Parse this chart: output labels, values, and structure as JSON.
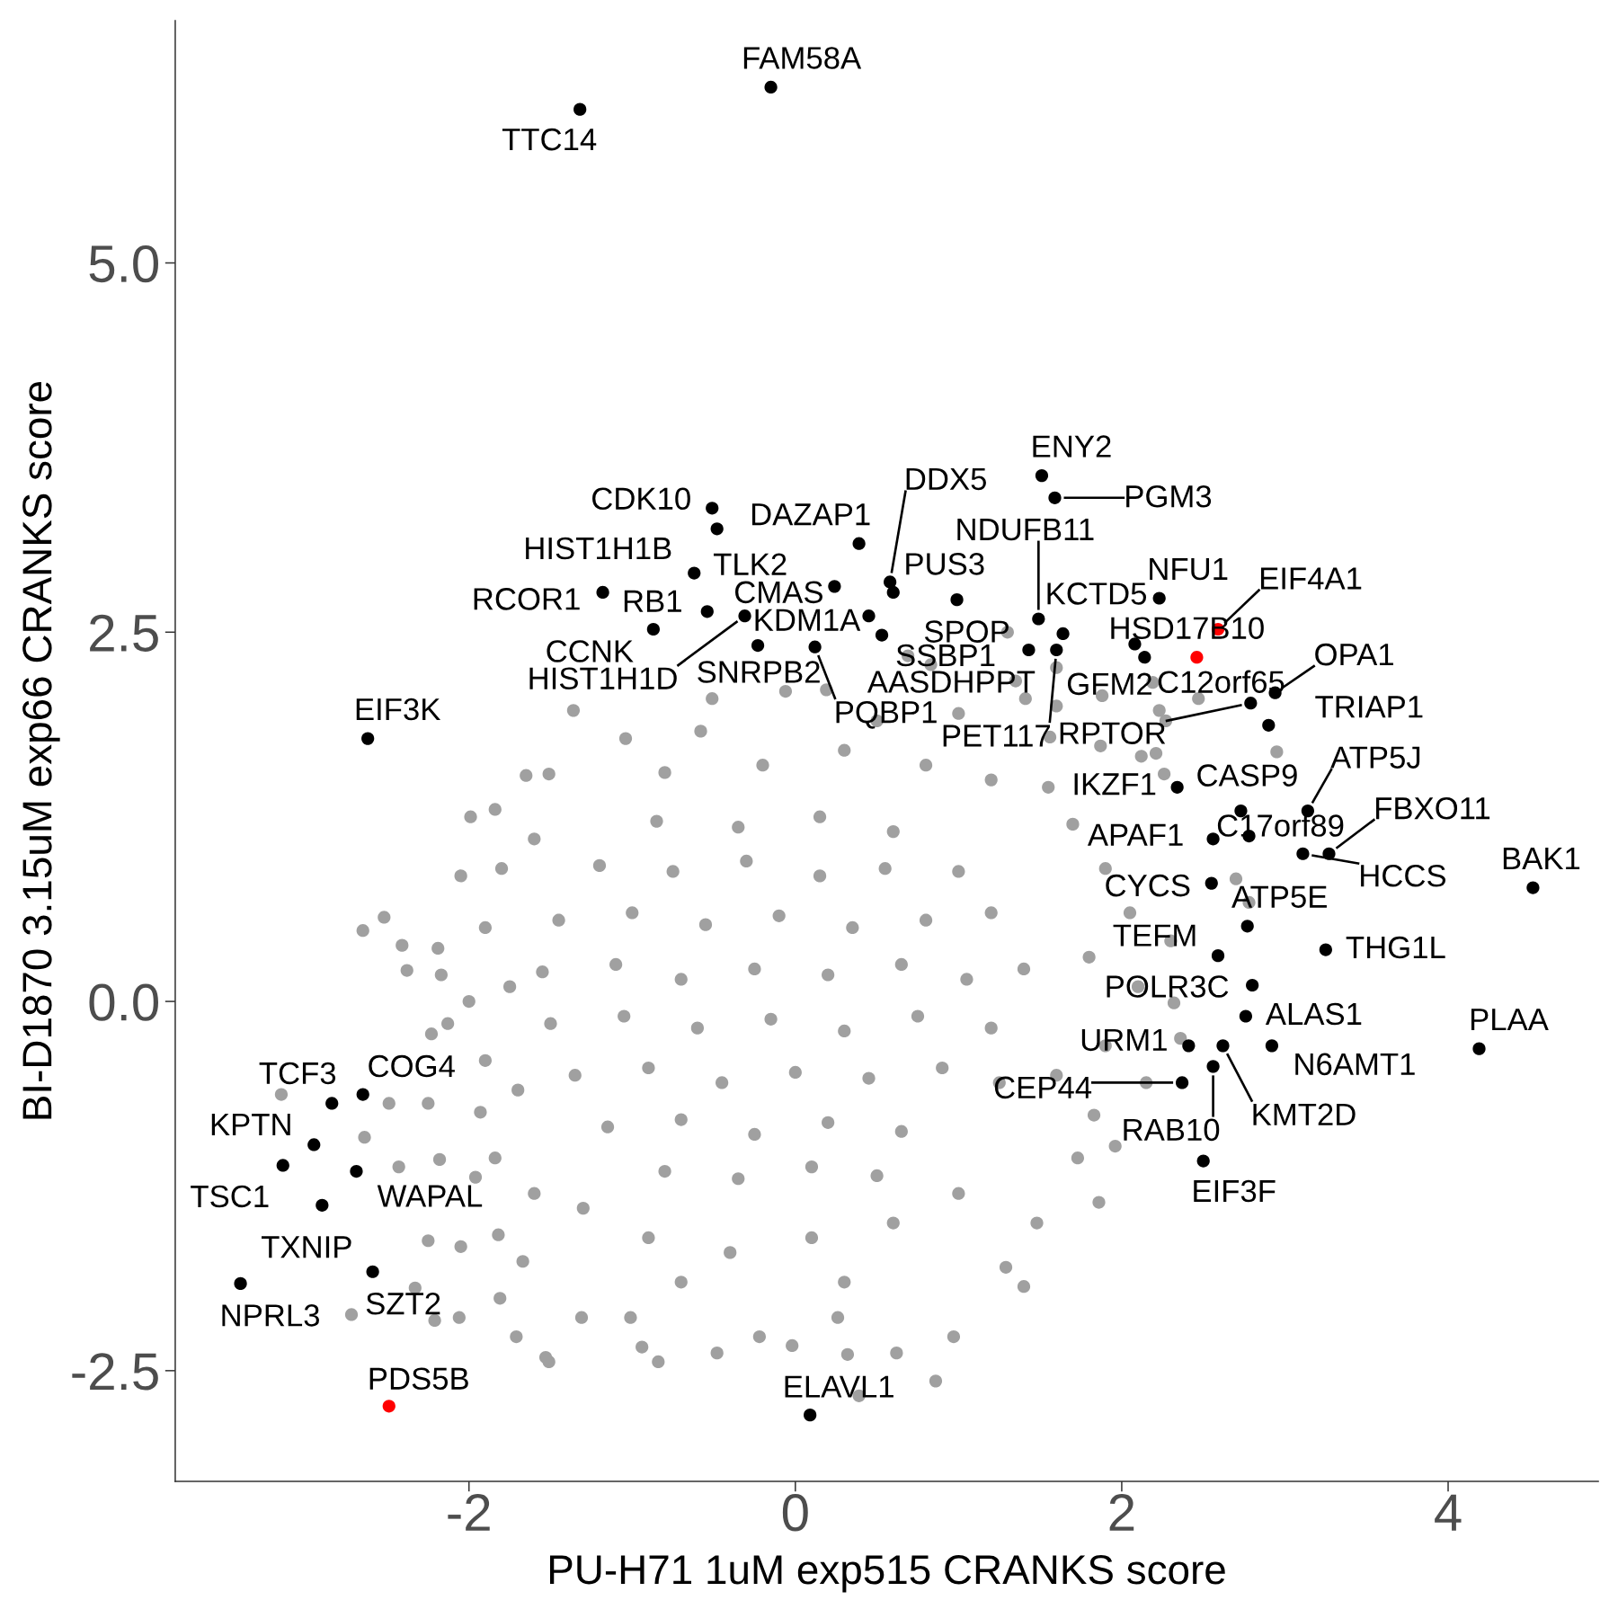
{
  "chart_data": {
    "type": "scatter",
    "xlabel": "PU-H71 1uM exp515 CRANKS score",
    "ylabel": "BI-D1870 3.15uM exp66 CRANKS score",
    "xlim": [
      -3.8,
      4.92
    ],
    "ylim": [
      -3.25,
      6.64
    ],
    "xticks": [
      -2,
      0,
      2,
      4
    ],
    "yticks": [
      -2.5,
      {
        "value": 0,
        "label": "0.0"
      },
      2.5,
      {
        "value": 5,
        "label": "5.0"
      }
    ],
    "grid": false,
    "marker": "circle",
    "series": [
      {
        "color": "#a0a0a0",
        "x": [
          -1.65,
          -1.51,
          -1.99,
          -1.84,
          -2.05,
          -2.52,
          -2.65,
          -2.41,
          -2.38,
          -2.19,
          -2.17,
          -2.23,
          -2.13,
          -3.15,
          -2.49,
          -2.64,
          -2.43,
          -2.18,
          -2.25,
          -2.25,
          -2.05,
          -2.72,
          -2.33,
          -2.21,
          -2.06,
          -1.71,
          -1.81,
          -1.51,
          -1.31,
          -1.01,
          -0.94,
          -1.84,
          -1.82,
          -1.67,
          -1.96,
          -1.93,
          -1.36,
          -1.04,
          -0.58,
          -0.51,
          -0.06,
          0.19,
          -1.53,
          -0.84,
          -0.48,
          -0.22,
          -0.02,
          0.26,
          0.32,
          0.39,
          0.62,
          0.86,
          0.97,
          1.29,
          1.4,
          1.48,
          1.86,
          1.73,
          1.96,
          1.83,
          2.32,
          2.36,
          2.7,
          2.78,
          2.3,
          1.6,
          2.19,
          2.47,
          1.88,
          1.6,
          2.23,
          2.27,
          2.95,
          1.87,
          2.12,
          2.21,
          2.26,
          0.69,
          1.3,
          0.83,
          1.35,
          1.56,
          1.41,
          -0.8,
          -0.2,
          0.3,
          0.8,
          1.2,
          0.5,
          1.0,
          1.7,
          1.9,
          2.05,
          1.8,
          2.1,
          1.9,
          1.6,
          2.15,
          1.55,
          -1.8,
          -1.9,
          -1.75,
          -1.9,
          -1.7,
          -1.6,
          -2.0,
          -1.3,
          -0.9,
          -0.4,
          0.1,
          0.6,
          1.0,
          -1.6,
          0.3,
          -0.7,
          -0.85,
          -0.35,
          0.15,
          0.6,
          -1.2,
          -0.75,
          -0.3,
          0.15,
          0.55,
          1.0,
          -1.45,
          -1.0,
          -0.55,
          -0.1,
          0.35,
          0.8,
          1.2,
          -1.55,
          -1.1,
          -0.7,
          -0.25,
          0.2,
          0.65,
          1.05,
          1.4,
          -1.5,
          -1.05,
          -0.6,
          -0.15,
          0.3,
          0.75,
          1.2,
          -1.35,
          -0.9,
          -0.45,
          0.0,
          0.45,
          0.9,
          1.25,
          -1.15,
          -0.7,
          -0.25,
          0.2,
          0.65,
          -0.8,
          -0.35,
          0.1,
          0.5
        ],
        "values": [
          1.53,
          1.54,
          1.25,
          1.3,
          0.85,
          0.57,
          0.48,
          0.38,
          0.21,
          0.36,
          0.18,
          -0.22,
          -0.15,
          -0.63,
          -0.69,
          -0.92,
          -1.12,
          -1.07,
          -0.69,
          -1.62,
          -1.66,
          -2.12,
          -1.94,
          -2.16,
          -2.14,
          -2.27,
          -2.01,
          -2.44,
          -2.14,
          -2.14,
          -2.34,
          -1.06,
          -1.58,
          -1.76,
          -1.19,
          -0.75,
          1.97,
          1.78,
          1.83,
          2.05,
          2.1,
          2.11,
          -2.41,
          -2.44,
          -2.38,
          -2.27,
          -2.33,
          -2.14,
          -2.39,
          -2.67,
          -2.38,
          -2.57,
          -2.27,
          -1.8,
          -1.93,
          -1.5,
          -1.36,
          -1.06,
          -0.98,
          -0.77,
          -0.01,
          -0.25,
          0.83,
          0.67,
          0.41,
          2.26,
          2.16,
          2.05,
          2.07,
          2.0,
          1.97,
          1.9,
          1.69,
          1.73,
          1.66,
          1.68,
          1.54,
          2.34,
          2.5,
          2.28,
          2.17,
          1.79,
          2.05,
          1.55,
          1.6,
          1.7,
          1.6,
          1.5,
          1.9,
          1.95,
          1.2,
          0.9,
          0.6,
          0.3,
          0.1,
          -0.3,
          -0.5,
          -0.55,
          1.45,
          0.9,
          0.5,
          0.1,
          -0.4,
          -0.6,
          1.1,
          0.0,
          -1.4,
          -1.6,
          -1.7,
          -1.6,
          -1.5,
          -1.3,
          -1.3,
          -1.9,
          -1.9,
          1.22,
          1.18,
          1.25,
          1.15,
          0.92,
          0.88,
          0.95,
          0.85,
          0.9,
          0.88,
          0.55,
          0.6,
          0.52,
          0.58,
          0.5,
          0.55,
          0.6,
          0.2,
          0.25,
          0.15,
          0.22,
          0.18,
          0.25,
          0.15,
          0.22,
          -0.15,
          -0.1,
          -0.18,
          -0.12,
          -0.2,
          -0.1,
          -0.18,
          -0.5,
          -0.45,
          -0.55,
          -0.48,
          -0.52,
          -0.45,
          -0.55,
          -0.85,
          -0.8,
          -0.9,
          -0.82,
          -0.88,
          -1.15,
          -1.2,
          -1.12,
          -1.18
        ]
      },
      {
        "color": "#000000",
        "x": [
          -0.15,
          -1.32,
          -2.62,
          0.24,
          -0.51,
          0.39,
          -0.62,
          -0.48,
          -1.18,
          -0.54,
          -0.31,
          -0.87,
          0.12,
          -0.23,
          0.45,
          1.43,
          0.53,
          0.58,
          0.6,
          0.99,
          1.6,
          1.49,
          1.64,
          2.08,
          1.51,
          1.59,
          2.23,
          2.14,
          2.94,
          2.9,
          2.79,
          2.34,
          3.14,
          2.73,
          2.78,
          2.56,
          3.27,
          3.11,
          4.52,
          2.55,
          2.77,
          3.25,
          2.59,
          2.8,
          2.76,
          4.19,
          2.41,
          2.92,
          2.62,
          2.37,
          2.56,
          2.5,
          -2.65,
          -2.84,
          -2.95,
          -3.14,
          -2.69,
          -2.9,
          -2.59,
          -3.4,
          0.09
        ],
        "values": [
          6.19,
          6.04,
          1.78,
          2.81,
          3.34,
          3.1,
          2.9,
          3.2,
          2.77,
          2.64,
          2.61,
          2.52,
          2.4,
          2.41,
          2.61,
          2.38,
          2.48,
          2.84,
          2.77,
          2.72,
          2.38,
          2.59,
          2.49,
          2.42,
          3.56,
          3.41,
          2.73,
          2.33,
          2.09,
          1.87,
          2.02,
          1.45,
          1.29,
          1.29,
          1.12,
          1.1,
          1.0,
          1.0,
          0.77,
          0.8,
          0.51,
          0.35,
          0.31,
          0.11,
          -0.1,
          -0.32,
          -0.3,
          -0.3,
          -0.3,
          -0.55,
          -0.44,
          -1.08,
          -0.63,
          -0.69,
          -0.97,
          -1.11,
          -1.15,
          -1.38,
          -1.83,
          -1.91,
          -2.8
        ]
      },
      {
        "color": "#ff0000",
        "x": [
          2.59,
          2.46,
          -2.49
        ],
        "values": [
          2.52,
          2.33,
          -2.74
        ]
      }
    ],
    "annotations": [
      {
        "text": "FAM58A",
        "x": -0.15,
        "y": 6.19
      },
      {
        "text": "TTC14",
        "x": -1.32,
        "y": 6.04
      },
      {
        "text": "EIF3K",
        "x": -2.62,
        "y": 1.78
      },
      {
        "text": "CMAS",
        "x": 0.24,
        "y": 2.81
      },
      {
        "text": "CDK10",
        "x": -0.51,
        "y": 3.34
      },
      {
        "text": "DAZAP1",
        "x": 0.39,
        "y": 3.1
      },
      {
        "text": "HIST1H1B",
        "x": -0.62,
        "y": 2.9
      },
      {
        "text": "TLK2",
        "x": -0.48,
        "y": 3.2
      },
      {
        "text": "RCOR1",
        "x": -1.18,
        "y": 2.77
      },
      {
        "text": "RB1",
        "x": -0.54,
        "y": 2.64
      },
      {
        "text": "HIST1H1D",
        "x": -0.31,
        "y": 2.61
      },
      {
        "text": "CCNK",
        "x": -0.87,
        "y": 2.52
      },
      {
        "text": "PQBP1",
        "x": 0.12,
        "y": 2.4
      },
      {
        "text": "SNRPB2",
        "x": -0.23,
        "y": 2.41
      },
      {
        "text": "KDM1A",
        "x": 0.45,
        "y": 2.61
      },
      {
        "text": "AASDHPPT",
        "x": 1.43,
        "y": 2.38
      },
      {
        "text": "SSBP1",
        "x": 0.53,
        "y": 2.48
      },
      {
        "text": "DDX5",
        "x": 0.58,
        "y": 2.84
      },
      {
        "text": "PUS3",
        "x": 0.6,
        "y": 2.77
      },
      {
        "text": "SPOP",
        "x": 0.99,
        "y": 2.72
      },
      {
        "text": "PET117",
        "x": 1.6,
        "y": 2.38
      },
      {
        "text": "NDUFB11",
        "x": 1.49,
        "y": 2.59
      },
      {
        "text": "KCTD5",
        "x": 1.64,
        "y": 2.49
      },
      {
        "text": "GFM2",
        "x": 2.08,
        "y": 2.42
      },
      {
        "text": "ENY2",
        "x": 1.51,
        "y": 3.56
      },
      {
        "text": "PGM3",
        "x": 1.59,
        "y": 3.41
      },
      {
        "text": "NFU1",
        "x": 2.23,
        "y": 2.73
      },
      {
        "text": "EIF4A1",
        "x": 2.59,
        "y": 2.52
      },
      {
        "text": "HSD17B10",
        "x": 2.14,
        "y": 2.33
      },
      {
        "text": "C12orf65",
        "x": 2.46,
        "y": 2.33
      },
      {
        "text": "OPA1",
        "x": 2.94,
        "y": 2.09
      },
      {
        "text": "TRIAP1",
        "x": 2.9,
        "y": 1.87
      },
      {
        "text": "RPTOR",
        "x": 2.79,
        "y": 2.02
      },
      {
        "text": "IKZF1",
        "x": 2.34,
        "y": 1.45
      },
      {
        "text": "ATP5J",
        "x": 3.14,
        "y": 1.29
      },
      {
        "text": "CASP9",
        "x": 2.73,
        "y": 1.29
      },
      {
        "text": "C17orf89",
        "x": 2.78,
        "y": 1.12
      },
      {
        "text": "APAF1",
        "x": 2.56,
        "y": 1.1
      },
      {
        "text": "FBXO11",
        "x": 3.27,
        "y": 1.0
      },
      {
        "text": "HCCS",
        "x": 3.11,
        "y": 1.0
      },
      {
        "text": "BAK1",
        "x": 4.52,
        "y": 0.77
      },
      {
        "text": "CYCS",
        "x": 2.55,
        "y": 0.8
      },
      {
        "text": "ATP5E",
        "x": 2.77,
        "y": 0.51
      },
      {
        "text": "THG1L",
        "x": 3.25,
        "y": 0.35
      },
      {
        "text": "TEFM",
        "x": 2.59,
        "y": 0.31
      },
      {
        "text": "POLR3C",
        "x": 2.8,
        "y": 0.11
      },
      {
        "text": "ALAS1",
        "x": 2.76,
        "y": -0.1
      },
      {
        "text": "PLAA",
        "x": 4.19,
        "y": -0.32
      },
      {
        "text": "URM1",
        "x": 2.41,
        "y": -0.3
      },
      {
        "text": "N6AMT1",
        "x": 2.92,
        "y": -0.3
      },
      {
        "text": "KMT2D",
        "x": 2.62,
        "y": -0.3
      },
      {
        "text": "CEP44",
        "x": 2.37,
        "y": -0.55
      },
      {
        "text": "RAB10",
        "x": 2.56,
        "y": -0.44
      },
      {
        "text": "EIF3F",
        "x": 2.5,
        "y": -1.08
      },
      {
        "text": "COG4",
        "x": -2.65,
        "y": -0.63
      },
      {
        "text": "TCF3",
        "x": -2.84,
        "y": -0.69
      },
      {
        "text": "KPTN",
        "x": -2.95,
        "y": -0.97
      },
      {
        "text": "TSC1",
        "x": -3.14,
        "y": -1.11
      },
      {
        "text": "WAPAL",
        "x": -2.69,
        "y": -1.15
      },
      {
        "text": "TXNIP",
        "x": -2.9,
        "y": -1.38
      },
      {
        "text": "SZT2",
        "x": -2.59,
        "y": -1.83
      },
      {
        "text": "NPRL3",
        "x": -3.4,
        "y": -1.91
      },
      {
        "text": "PDS5B",
        "x": -2.49,
        "y": -2.74
      },
      {
        "text": "ELAVL1",
        "x": 0.09,
        "y": -2.8
      }
    ]
  }
}
